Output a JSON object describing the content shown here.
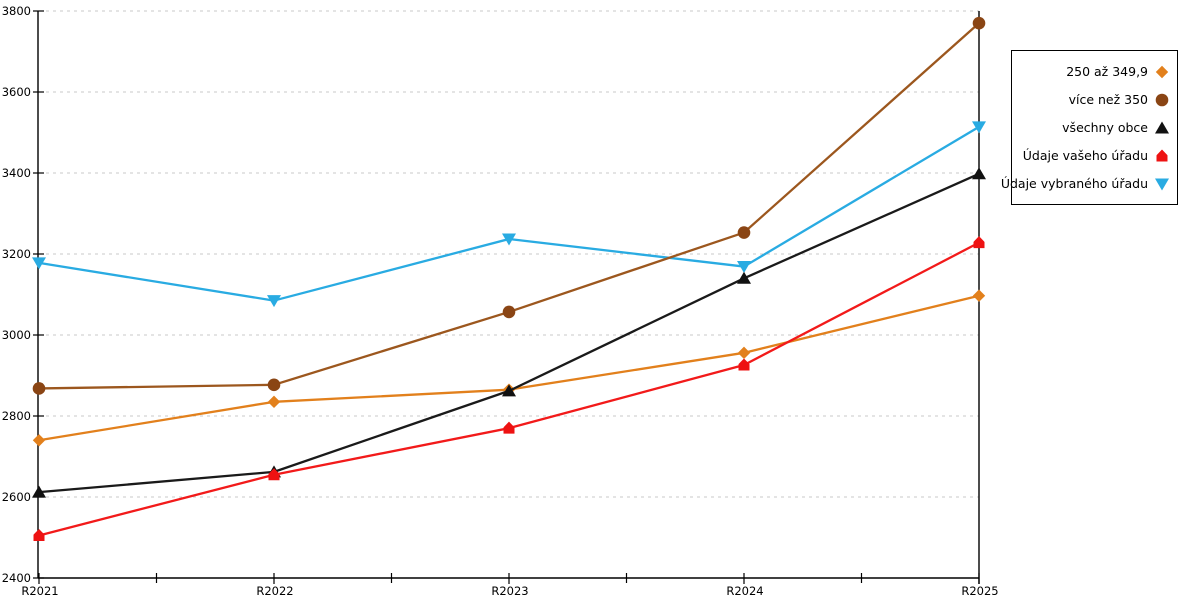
{
  "chart_data": {
    "type": "line",
    "categories": [
      "R2021",
      "R2022",
      "R2023",
      "R2024",
      "R2025"
    ],
    "y_ticks": [
      2400,
      2600,
      2800,
      3000,
      3200,
      3400,
      3600,
      3800
    ],
    "ylim": [
      2400,
      3800
    ],
    "grid": "horizontal-dashed",
    "legend_position": "right",
    "series": [
      {
        "name": "250 až 349,9",
        "marker": "diamond",
        "color": "#e2801c",
        "marker_color": "#e2801c",
        "values": [
          2740,
          2835,
          2865,
          2956,
          3097
        ]
      },
      {
        "name": "více než 350",
        "marker": "circle",
        "color": "#9c571e",
        "marker_color": "#8a4514",
        "values": [
          2868,
          2877,
          3057,
          3253,
          3770
        ]
      },
      {
        "name": "všechny obce",
        "marker": "triangle-up",
        "color": "#1a1a1a",
        "marker_color": "#111111",
        "values": [
          2612,
          2662,
          2862,
          3140,
          3398
        ]
      },
      {
        "name": "Údaje vašeho úřadu",
        "marker": "pentagon-up",
        "color": "#f21a1a",
        "marker_color": "#ee1212",
        "values": [
          2505,
          2655,
          2770,
          2926,
          3228
        ]
      },
      {
        "name": "Údaje vybraného úřadu",
        "marker": "triangle-down",
        "color": "#29abe2",
        "marker_color": "#29abe2",
        "values": [
          3178,
          3085,
          3237,
          3169,
          3514
        ]
      }
    ],
    "colors": {
      "gridline": "#c8c8c8",
      "axis": "#000000",
      "tick_label": "#000000"
    }
  }
}
